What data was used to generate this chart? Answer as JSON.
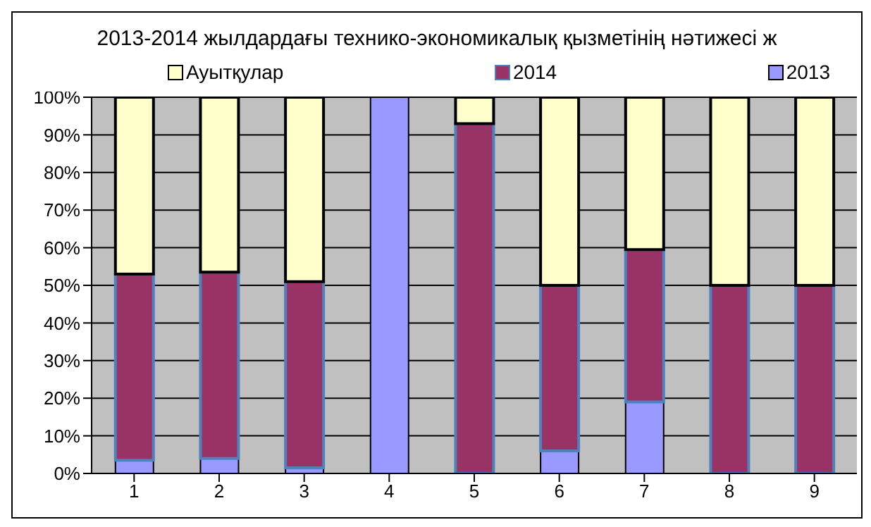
{
  "chart_data": {
    "type": "bar",
    "stacked": true,
    "title": "2013-2014 жылдардағы технико-экономикалық қызметінің нәтижесі ж",
    "categories": [
      "1",
      "2",
      "3",
      "4",
      "5",
      "6",
      "7",
      "8",
      "9"
    ],
    "series": [
      {
        "name": "2013",
        "color": "#9999ff",
        "values": [
          3.5,
          4,
          1.5,
          100,
          0,
          6,
          19,
          0,
          0
        ]
      },
      {
        "name": "2014",
        "color": "#993366",
        "values": [
          49.5,
          49.5,
          49.5,
          0,
          93,
          44,
          40.5,
          50,
          50
        ]
      },
      {
        "name": "Ауытқулар",
        "color": "#ffffcc",
        "values": [
          47,
          46.5,
          49,
          0,
          7,
          50,
          40.5,
          50,
          50
        ]
      }
    ],
    "ylim": [
      0,
      100
    ],
    "yticks": [
      {
        "value": 0,
        "label": "0%"
      },
      {
        "value": 10,
        "label": "10%"
      },
      {
        "value": 20,
        "label": "20%"
      },
      {
        "value": 30,
        "label": "30%"
      },
      {
        "value": 40,
        "label": "40%"
      },
      {
        "value": 50,
        "label": "50%"
      },
      {
        "value": 60,
        "label": "60%"
      },
      {
        "value": 70,
        "label": "70%"
      },
      {
        "value": 80,
        "label": "80%"
      },
      {
        "value": 90,
        "label": "90%"
      },
      {
        "value": 100,
        "label": "100%"
      }
    ],
    "grid": "y",
    "legend": "top"
  }
}
